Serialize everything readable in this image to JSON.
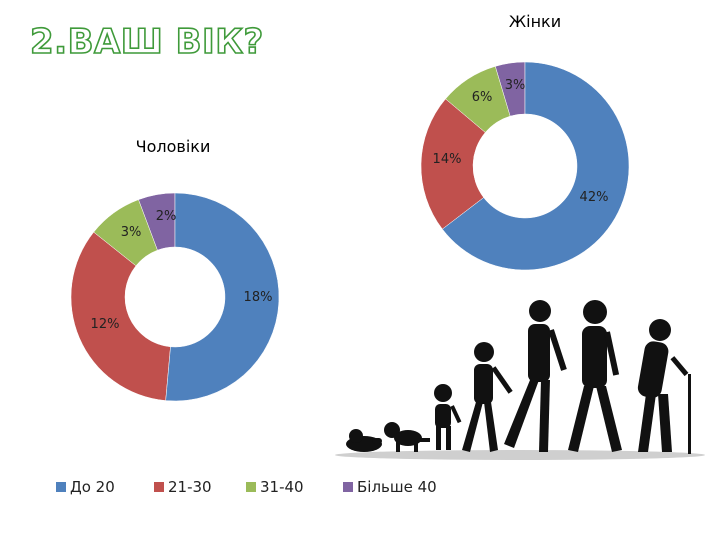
{
  "title": "2.ВАШ ВІК?",
  "legend": [
    "До 20",
    "21-30",
    "31-40",
    "Більше 40"
  ],
  "colors": [
    "#4f81bd",
    "#c0504d",
    "#9bbb59",
    "#8064a2"
  ],
  "chart_data": [
    {
      "type": "pie",
      "variant": "donut",
      "title": "Чоловіки",
      "categories": [
        "До 20",
        "21-30",
        "31-40",
        "Більше 40"
      ],
      "values": [
        18,
        12,
        3,
        2
      ],
      "labels": [
        "18%",
        "12%",
        "3%",
        "2%"
      ]
    },
    {
      "type": "pie",
      "variant": "donut",
      "title": "Жінки",
      "categories": [
        "До 20",
        "21-30",
        "31-40",
        "Більше 40"
      ],
      "values": [
        42,
        14,
        6,
        3
      ],
      "labels": [
        "42%",
        "14%",
        "6%",
        "3%"
      ]
    }
  ],
  "illustration": "human-evolution-silhouettes"
}
